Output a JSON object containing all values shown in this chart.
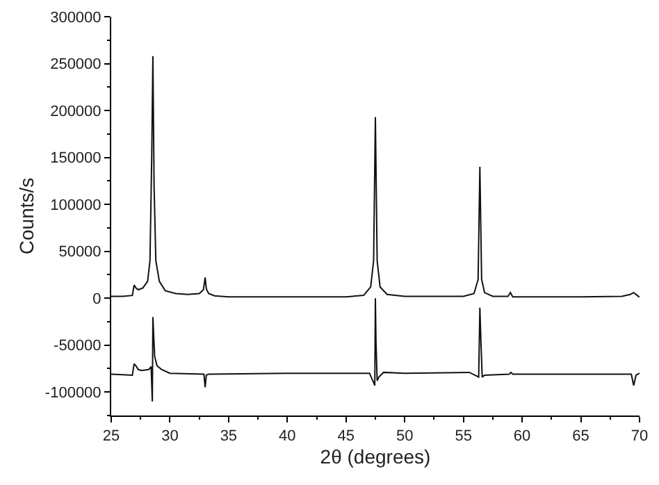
{
  "chart_data": {
    "type": "line",
    "xlabel": "2θ (degrees)",
    "ylabel": "Counts/s",
    "xlim": [
      25,
      70
    ],
    "xticks": [
      25,
      30,
      35,
      40,
      45,
      50,
      55,
      60,
      65,
      70
    ],
    "ylim": [
      -125000,
      300000
    ],
    "yticks": [
      -100000,
      -50000,
      0,
      50000,
      100000,
      150000,
      200000,
      250000,
      300000
    ],
    "grid": false,
    "marker": "none",
    "line_style": "solid",
    "series": [
      {
        "color": "#111111",
        "x": [
          25,
          26,
          26.8,
          26.95,
          27.1,
          27.3,
          27.7,
          28.1,
          28.3,
          28.45,
          28.55,
          28.65,
          28.8,
          29.1,
          29.6,
          30.5,
          31.5,
          32.5,
          32.85,
          33.0,
          33.1,
          33.3,
          33.8,
          35,
          40,
          45,
          46.5,
          47.1,
          47.35,
          47.5,
          47.65,
          47.9,
          48.5,
          50,
          55,
          55.9,
          56.25,
          56.4,
          56.55,
          56.8,
          57.5,
          58.8,
          59.0,
          59.2,
          62,
          65,
          68.5,
          69.2,
          69.5,
          69.8,
          70
        ],
        "values": [
          2000,
          2000,
          3000,
          14000,
          11000,
          9000,
          11000,
          18000,
          40000,
          150000,
          258000,
          120000,
          40000,
          18000,
          8000,
          5000,
          4000,
          5000,
          9000,
          22000,
          10000,
          5000,
          2500,
          1500,
          1500,
          1500,
          3000,
          12000,
          40000,
          193000,
          40000,
          12000,
          4000,
          2000,
          2000,
          5000,
          20000,
          140000,
          20000,
          6000,
          2000,
          2000,
          6000,
          1500,
          1500,
          1500,
          2000,
          4000,
          6000,
          3000,
          1000
        ]
      },
      {
        "color": "#111111",
        "x": [
          25,
          26.8,
          26.95,
          27.1,
          27.3,
          27.6,
          28.2,
          28.4,
          28.5,
          28.55,
          28.6,
          28.7,
          28.9,
          29.3,
          30,
          32.9,
          33.0,
          33.1,
          33.3,
          40,
          47.0,
          47.35,
          47.45,
          47.5,
          47.55,
          47.65,
          47.8,
          48.2,
          50,
          55.5,
          56.3,
          56.4,
          56.5,
          56.6,
          56.8,
          58.9,
          59.05,
          59.2,
          65,
          69.3,
          69.5,
          69.7,
          70
        ],
        "values": [
          -81000,
          -82000,
          -70000,
          -72000,
          -76000,
          -77000,
          -76000,
          -73000,
          -110000,
          -20000,
          -35000,
          -62000,
          -72000,
          -76000,
          -80000,
          -81000,
          -95000,
          -82000,
          -81000,
          -80000,
          -80000,
          -90000,
          -93000,
          0,
          -45000,
          -88000,
          -84000,
          -79000,
          -80000,
          -79000,
          -84000,
          -10000,
          -50000,
          -84000,
          -82000,
          -81000,
          -79000,
          -81000,
          -81000,
          -81000,
          -93000,
          -82000,
          -80000
        ]
      }
    ]
  }
}
